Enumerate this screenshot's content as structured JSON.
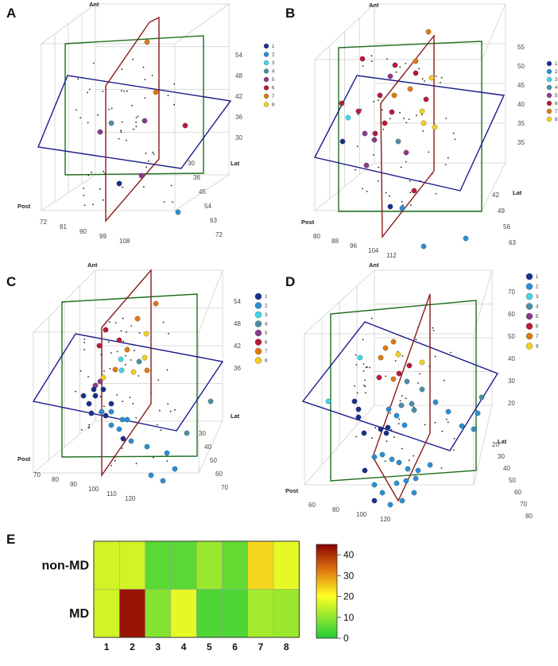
{
  "colors": {
    "cluster": [
      "#1a2f8c",
      "#2a8fd4",
      "#3fd6e8",
      "#4a8fa8",
      "#8e3a8c",
      "#b81a3a",
      "#e07a10",
      "#f2d020"
    ],
    "plane_horizontal": "#1a1a8c",
    "plane_coronal": "#1e6e1e",
    "plane_sagittal": "#8a1a1a",
    "grid": "#cfcfcf"
  },
  "panels": [
    {
      "label": "A",
      "ant_label": "Ant",
      "post_label": "Post",
      "lat_label": "Lat",
      "x_ticks": [
        "72",
        "81",
        "90",
        "99",
        "108"
      ],
      "y_ticks": [
        "30",
        "36",
        "45",
        "54",
        "63",
        "72"
      ],
      "z_ticks": [
        "54",
        "48",
        "42",
        "36",
        "30"
      ],
      "legend": [
        "1",
        "2",
        "3",
        "4",
        "5",
        "6",
        "7",
        "8"
      ]
    },
    {
      "label": "B",
      "ant_label": "Ant",
      "post_label": "Post",
      "lat_label": "Lat",
      "x_ticks": [
        "80",
        "88",
        "96",
        "104",
        "112"
      ],
      "y_ticks": [
        "42",
        "49",
        "56",
        "63"
      ],
      "z_ticks": [
        "55",
        "50",
        "45",
        "40",
        "35",
        "35"
      ],
      "legend": [
        "1",
        "2",
        "3",
        "4",
        "5",
        "6",
        "7",
        "8"
      ]
    },
    {
      "label": "C",
      "ant_label": "Ant",
      "post_label": "Post",
      "lat_label": "Lat",
      "x_ticks": [
        "70",
        "80",
        "90",
        "100",
        "110",
        "120"
      ],
      "y_ticks": [
        "30",
        "40",
        "50",
        "60",
        "70"
      ],
      "z_ticks": [
        "54",
        "48",
        "42",
        "36"
      ],
      "legend": [
        "1",
        "2",
        "3",
        "4",
        "5",
        "6",
        "7",
        "8"
      ]
    },
    {
      "label": "D",
      "ant_label": "Ant",
      "post_label": "Post",
      "lat_label": "Lat",
      "x_ticks": [
        "60",
        "80",
        "100",
        "120"
      ],
      "y_ticks": [
        "20",
        "30",
        "40",
        "50",
        "60",
        "70",
        "80"
      ],
      "z_ticks": [
        "70",
        "60",
        "50",
        "40",
        "30",
        "20"
      ],
      "legend": [
        "1",
        "2",
        "3",
        "4",
        "5",
        "6",
        "7",
        "8"
      ]
    }
  ],
  "chart_data": {
    "type": "heatmap",
    "panel_label": "E",
    "x_categories": [
      "1",
      "2",
      "3",
      "4",
      "5",
      "6",
      "7",
      "8"
    ],
    "y_categories": [
      "non-MD",
      "MD"
    ],
    "values": [
      [
        16,
        16,
        5,
        5,
        11,
        6,
        24,
        18
      ],
      [
        16,
        43,
        9,
        18,
        4,
        4,
        12,
        11
      ]
    ],
    "colorbar_ticks": [
      "40",
      "30",
      "20",
      "10",
      "0"
    ],
    "vmin": 0,
    "vmax": 45
  }
}
